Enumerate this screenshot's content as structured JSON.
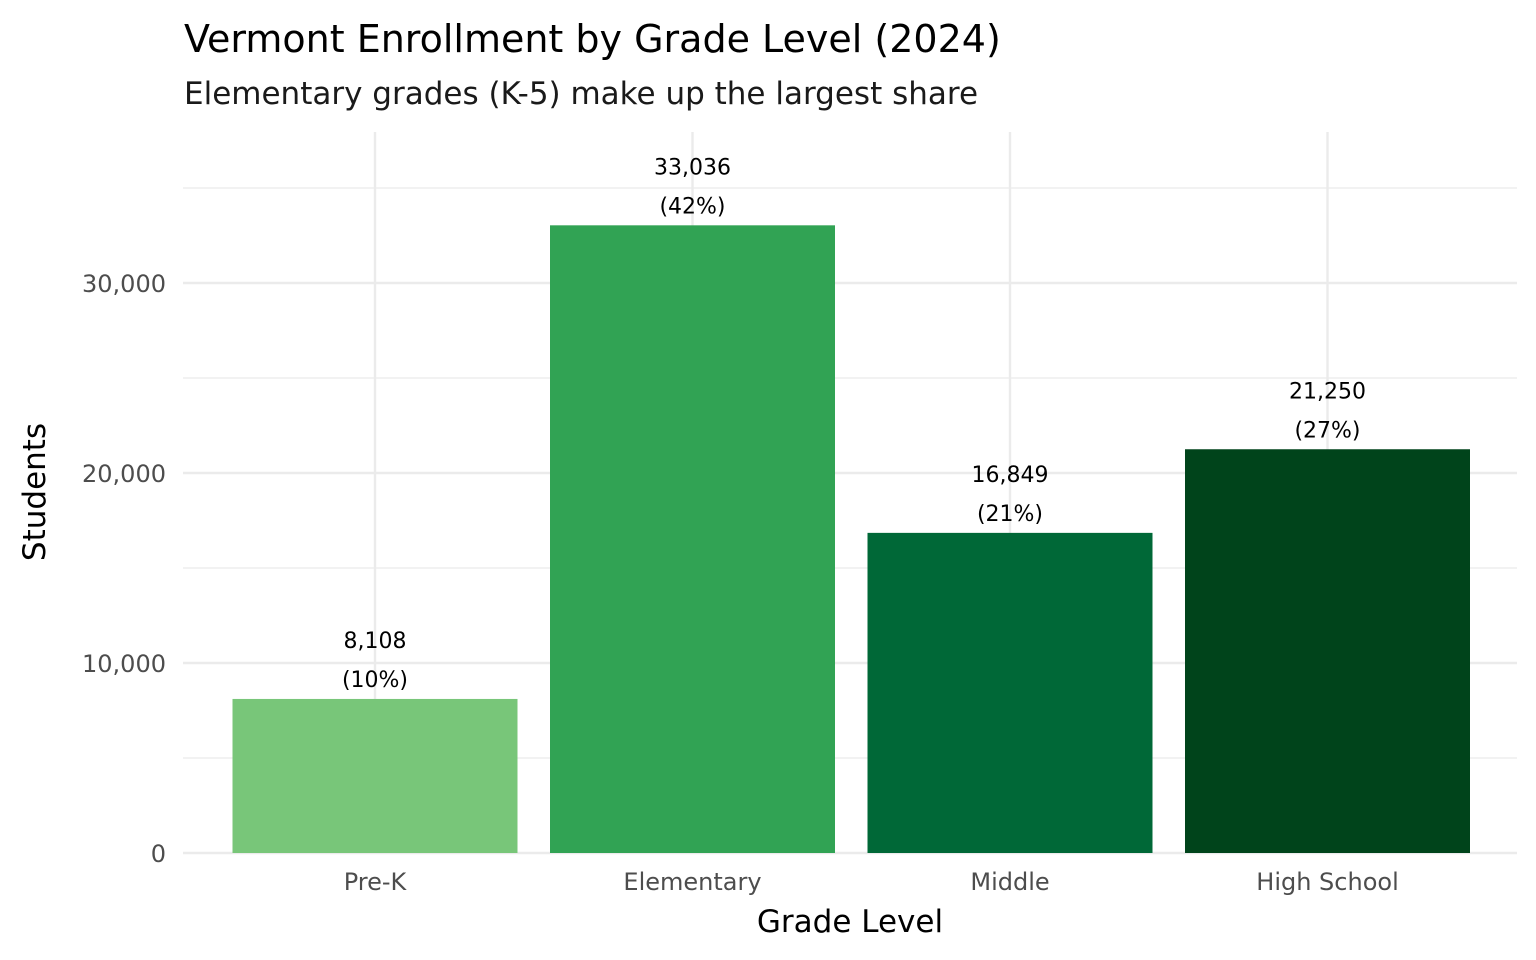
{
  "chart_data": {
    "type": "bar",
    "title": "Vermont Enrollment by Grade Level (2024)",
    "subtitle": "Elementary grades (K-5) make up the largest share",
    "xlabel": "Grade Level",
    "ylabel": "Students",
    "categories": [
      "Pre-K",
      "Elementary",
      "Middle",
      "High School"
    ],
    "values": [
      8108,
      33036,
      16849,
      21250
    ],
    "data_labels": [
      "8,108",
      "33,036",
      "16,849",
      "21,250"
    ],
    "percent_labels": [
      "(10%)",
      "(42%)",
      "(21%)",
      "(27%)"
    ],
    "colors": [
      "#78c679",
      "#31a354",
      "#006837",
      "#00441b"
    ],
    "y_ticks": [
      0,
      10000,
      20000,
      30000
    ],
    "y_tick_labels": [
      "0",
      "10,000",
      "20,000",
      "30,000"
    ],
    "ylim": [
      0,
      37000
    ],
    "grid": true,
    "legend": "none"
  }
}
